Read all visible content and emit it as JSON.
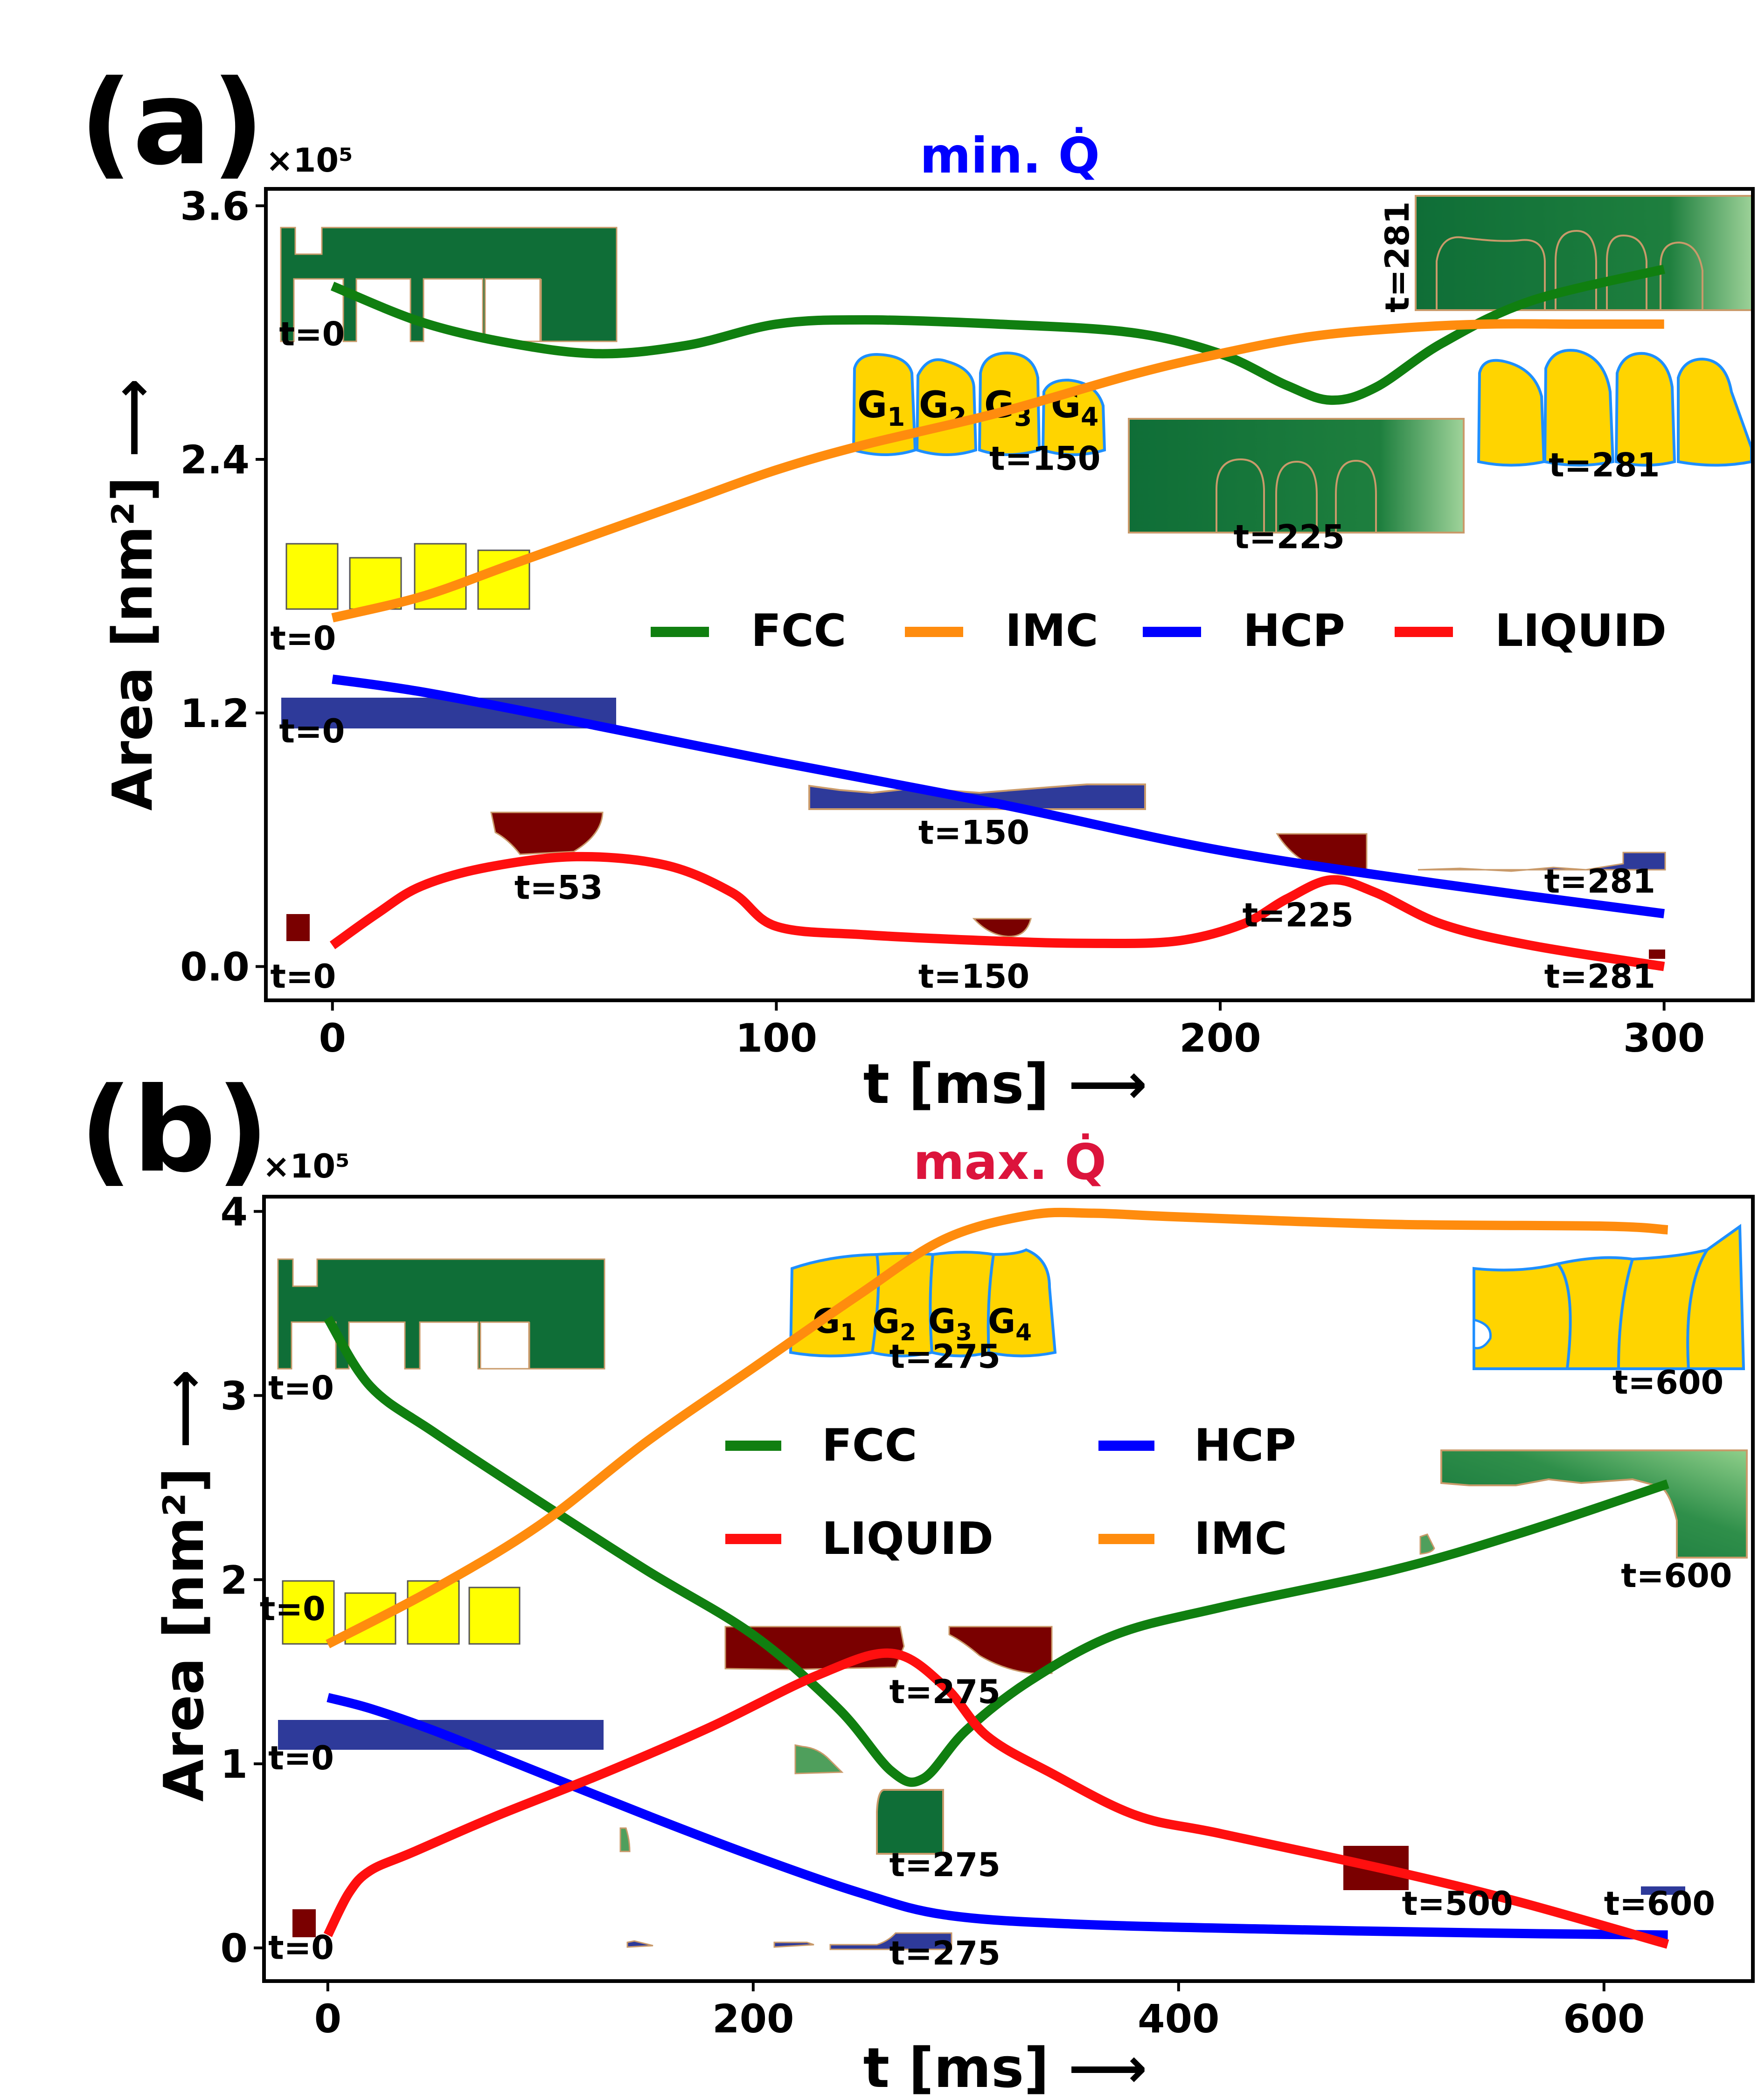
{
  "chart_data": [
    {
      "panel": "(a)",
      "type": "line",
      "title": "min. Q̇",
      "title_color": "#0000ff",
      "xlabel": "t [ms] ⟶",
      "ylabel": "Area [nm²] ⟶",
      "y_multiplier": "×10⁵",
      "xlim": [
        -15,
        320
      ],
      "ylim": [
        -0.16,
        3.68
      ],
      "xticks": [
        0,
        100,
        200,
        300
      ],
      "yticks": [
        0.0,
        1.2,
        2.4,
        3.6
      ],
      "ytick_labels": [
        "0.0",
        "1.2",
        "2.4",
        "3.6"
      ],
      "legend": [
        "FCC",
        "IMC",
        "HCP",
        "LIQUID"
      ],
      "legend_position": "center-right",
      "series": [
        {
          "name": "FCC",
          "color": "#107f10",
          "x": [
            0,
            20,
            40,
            60,
            80,
            100,
            120,
            150,
            180,
            200,
            215,
            225,
            235,
            250,
            270,
            300
          ],
          "y": [
            3.22,
            3.05,
            2.95,
            2.9,
            2.94,
            3.04,
            3.06,
            3.04,
            3.0,
            2.9,
            2.75,
            2.68,
            2.74,
            2.95,
            3.15,
            3.3
          ]
        },
        {
          "name": "IMC",
          "color": "#ff8c0e",
          "x": [
            0,
            20,
            40,
            60,
            80,
            100,
            120,
            150,
            180,
            200,
            220,
            240,
            260,
            280,
            300
          ],
          "y": [
            1.65,
            1.75,
            1.9,
            2.05,
            2.2,
            2.35,
            2.47,
            2.62,
            2.8,
            2.9,
            2.98,
            3.02,
            3.04,
            3.04,
            3.04
          ]
        },
        {
          "name": "HCP",
          "color": "#0000ff",
          "x": [
            0,
            20,
            50,
            100,
            150,
            200,
            250,
            300
          ],
          "y": [
            1.36,
            1.3,
            1.18,
            0.97,
            0.77,
            0.55,
            0.39,
            0.25
          ]
        },
        {
          "name": "LIQUID",
          "color": "#ff0f0f",
          "x": [
            0,
            10,
            20,
            35,
            55,
            75,
            90,
            100,
            120,
            150,
            170,
            190,
            205,
            215,
            225,
            235,
            250,
            270,
            300
          ],
          "y": [
            0.1,
            0.25,
            0.38,
            0.47,
            0.52,
            0.48,
            0.35,
            0.19,
            0.15,
            0.12,
            0.11,
            0.12,
            0.2,
            0.32,
            0.41,
            0.35,
            0.2,
            0.1,
            0.0
          ]
        }
      ],
      "annotations": [
        {
          "text": "t=0",
          "x": -12,
          "y": 2.94
        },
        {
          "text": "t=0",
          "x": -14,
          "y": 1.5
        },
        {
          "text": "t=0",
          "x": -12,
          "y": 1.06
        },
        {
          "text": "t=0",
          "x": -14,
          "y": -0.1
        },
        {
          "text": "t=53",
          "x": 41,
          "y": 0.32
        },
        {
          "text": "t=150",
          "x": 148,
          "y": 2.35
        },
        {
          "text": "t=150",
          "x": 132,
          "y": 0.58
        },
        {
          "text": "t=150",
          "x": 132,
          "y": -0.1
        },
        {
          "text": "t=225",
          "x": 203,
          "y": 1.98
        },
        {
          "text": "t=225",
          "x": 205,
          "y": 0.19
        },
        {
          "text": "t=281",
          "x": 274,
          "y": 2.32
        },
        {
          "text": "t=281",
          "x": 273,
          "y": 0.35
        },
        {
          "text": "t=281",
          "x": 273,
          "y": -0.1
        },
        {
          "text": "t=281",
          "x": 243,
          "y": 3.3,
          "rotated": true
        }
      ],
      "grain_labels": [
        "G1",
        "G2",
        "G3",
        "G4"
      ]
    },
    {
      "panel": "(b)",
      "type": "line",
      "title": "max. Q̇",
      "title_color": "#dc143c",
      "xlabel": "t [ms] ⟶",
      "ylabel": "Area [nm²] ⟶",
      "y_multiplier": "×10⁵",
      "xlim": [
        -30,
        670
      ],
      "ylim": [
        -0.18,
        4.08
      ],
      "xticks": [
        0,
        200,
        400,
        600
      ],
      "yticks": [
        0,
        1,
        2,
        3,
        4
      ],
      "ytick_labels": [
        "0",
        "1",
        "2",
        "3",
        "4"
      ],
      "legend": [
        "FCC",
        "HCP",
        "LIQUID",
        "IMC"
      ],
      "legend_position": "upper-center",
      "series": [
        {
          "name": "FCC",
          "color": "#107f10",
          "x": [
            0,
            20,
            50,
            100,
            150,
            200,
            240,
            265,
            280,
            300,
            330,
            370,
            420,
            500,
            560,
            630
          ],
          "y": [
            3.42,
            3.05,
            2.8,
            2.42,
            2.05,
            1.7,
            1.3,
            0.96,
            0.92,
            1.18,
            1.45,
            1.7,
            1.85,
            2.05,
            2.25,
            2.52
          ]
        },
        {
          "name": "IMC",
          "color": "#ff8c0e",
          "x": [
            0,
            50,
            100,
            150,
            200,
            250,
            290,
            330,
            360,
            400,
            500,
            600,
            630
          ],
          "y": [
            1.65,
            1.95,
            2.3,
            2.75,
            3.15,
            3.55,
            3.85,
            3.98,
            3.99,
            3.97,
            3.93,
            3.92,
            3.9
          ]
        },
        {
          "name": "HCP",
          "color": "#0000ff",
          "x": [
            0,
            20,
            50,
            100,
            150,
            200,
            250,
            290,
            350,
            450,
            550,
            630
          ],
          "y": [
            1.36,
            1.3,
            1.18,
            0.95,
            0.72,
            0.5,
            0.3,
            0.18,
            0.13,
            0.1,
            0.08,
            0.07
          ]
        },
        {
          "name": "LIQUID",
          "color": "#ff0f0f",
          "x": [
            0,
            10,
            20,
            40,
            80,
            130,
            180,
            230,
            265,
            290,
            310,
            340,
            380,
            420,
            500,
            560,
            630
          ],
          "y": [
            0.07,
            0.3,
            0.42,
            0.52,
            0.72,
            0.95,
            1.2,
            1.48,
            1.6,
            1.42,
            1.15,
            0.95,
            0.72,
            0.62,
            0.42,
            0.25,
            0.02
          ]
        }
      ],
      "annotations": [
        {
          "text": "t=0",
          "x": -28,
          "y": 2.98
        },
        {
          "text": "t=0",
          "x": -32,
          "y": 1.78
        },
        {
          "text": "t=0",
          "x": -28,
          "y": 0.97
        },
        {
          "text": "t=0",
          "x": -28,
          "y": -0.06
        },
        {
          "text": "t=275",
          "x": 264,
          "y": 3.15
        },
        {
          "text": "t=275",
          "x": 264,
          "y": 1.33
        },
        {
          "text": "t=275",
          "x": 264,
          "y": 0.39
        },
        {
          "text": "t=275",
          "x": 264,
          "y": -0.09
        },
        {
          "text": "t=500",
          "x": 505,
          "y": 0.18
        },
        {
          "text": "t=600",
          "x": 604,
          "y": 3.01
        },
        {
          "text": "t=600",
          "x": 608,
          "y": 1.96
        },
        {
          "text": "t=600",
          "x": 600,
          "y": 0.18
        }
      ],
      "grain_labels": [
        "G1",
        "G2",
        "G3",
        "G4"
      ]
    }
  ]
}
